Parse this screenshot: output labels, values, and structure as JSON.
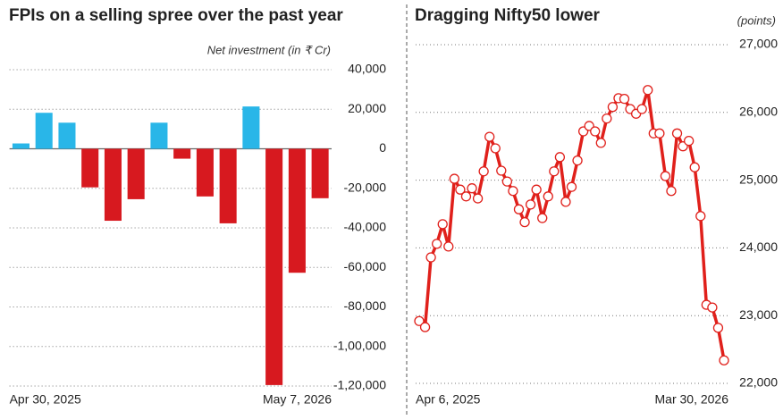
{
  "chart_data": [
    {
      "type": "bar",
      "title": "FPIs on a selling spree over the past year",
      "y_label": "Net investment (in ₹ Cr)",
      "categories": [
        "Apr 30, 2025",
        null,
        null,
        null,
        null,
        null,
        null,
        null,
        null,
        null,
        null,
        null,
        null,
        "May 7, 2026"
      ],
      "values": [
        2700,
        18200,
        13200,
        -19500,
        -36400,
        -25500,
        13200,
        -5000,
        -24100,
        -37700,
        21400,
        -119500,
        -62700,
        -25000
      ],
      "color_positive": "#29b6e8",
      "color_negative": "#d7191f",
      "ylim": [
        -120000,
        40000
      ],
      "yticks": [
        {
          "value": 40000,
          "label": "40,000"
        },
        {
          "value": 20000,
          "label": "20,000"
        },
        0,
        {
          "value": -20000,
          "label": "-20,000"
        },
        {
          "value": -40000,
          "label": "-40,000"
        },
        {
          "value": -60000,
          "label": "-60,000"
        },
        {
          "value": -80000,
          "label": "-80,000"
        },
        {
          "value": -100000,
          "label": "-1,00,000"
        },
        {
          "value": -120000,
          "label": "-1,20,000"
        }
      ],
      "grid": true
    },
    {
      "type": "line",
      "title": "Dragging Nifty50 lower",
      "y_label": "(points)",
      "categories": [
        "Apr 6, 2025",
        null,
        null,
        null,
        null,
        null,
        null,
        null,
        null,
        null,
        null,
        null,
        null,
        null,
        null,
        null,
        null,
        null,
        null,
        null,
        null,
        null,
        null,
        null,
        null,
        null,
        null,
        null,
        null,
        null,
        null,
        null,
        null,
        null,
        null,
        null,
        null,
        null,
        null,
        null,
        null,
        null,
        null,
        null,
        null,
        null,
        null,
        null,
        null,
        null,
        null,
        null,
        "Mar 30, 2026"
      ],
      "values": [
        22920,
        22830,
        23860,
        24060,
        24350,
        24020,
        25020,
        24860,
        24760,
        24880,
        24730,
        25130,
        25640,
        25470,
        25140,
        24980,
        24840,
        24570,
        24380,
        24640,
        24860,
        24440,
        24760,
        25130,
        25340,
        24680,
        24900,
        25290,
        25720,
        25800,
        25720,
        25550,
        25910,
        26080,
        26210,
        26200,
        26050,
        25980,
        26050,
        26330,
        25690,
        25690,
        25060,
        24840,
        25690,
        25500,
        25580,
        25190,
        24470,
        23160,
        23120,
        22820,
        22340
      ],
      "color": "#e0201b",
      "ylim": [
        22000,
        27000
      ],
      "yticks": [
        {
          "value": 22000,
          "label": "22,000"
        },
        {
          "value": 23000,
          "label": "23,000"
        },
        {
          "value": 24000,
          "label": "24,000"
        },
        {
          "value": 25000,
          "label": "25,000"
        },
        {
          "value": 26000,
          "label": "26,000"
        },
        {
          "value": 27000,
          "label": "27,000"
        }
      ],
      "grid": true
    }
  ]
}
